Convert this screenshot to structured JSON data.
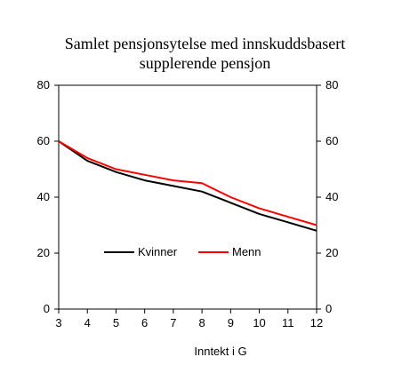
{
  "chart_data": {
    "type": "line",
    "title_lines": [
      "Samlet pensjonsytelse med innskuddsbasert",
      "supplerende pensjon"
    ],
    "xlabel": "Inntekt i G",
    "ylabel": "",
    "x": [
      3,
      4,
      5,
      6,
      7,
      8,
      9,
      10,
      11,
      12
    ],
    "xlim": [
      3,
      12
    ],
    "ylim": [
      0,
      80
    ],
    "yticks": [
      0,
      20,
      40,
      60,
      80
    ],
    "secondary_yticks": [
      0,
      20,
      40,
      60,
      80
    ],
    "grid": false,
    "legend_position": "center-left",
    "series": [
      {
        "name": "Kvinner",
        "color": "#000000",
        "values": [
          60,
          53,
          49,
          46,
          44,
          42,
          38,
          34,
          31,
          28
        ]
      },
      {
        "name": "Menn",
        "color": "#ff0000",
        "values": [
          60,
          54,
          50,
          48,
          46,
          45,
          40,
          36,
          33,
          30
        ]
      }
    ]
  }
}
